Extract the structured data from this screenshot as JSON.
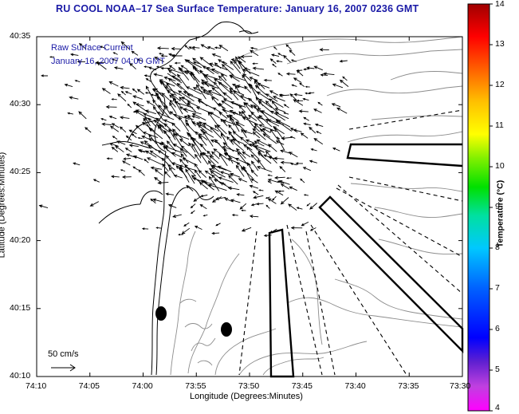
{
  "title": "RU COOL  NOAA–17  Sea Surface Temperature:  January 16, 2007 0236 GMT",
  "legend": {
    "line1": "Raw Surface Current",
    "line2": "January 16, 2007 04:00 GMT"
  },
  "scale": {
    "label": "50 cm/s"
  },
  "axes": {
    "xlabel": "Longitude (Degrees:Minutes)",
    "ylabel": "Latitude (Degrees:Minutes)",
    "xticks": [
      "74:10",
      "74:05",
      "74:00",
      "73:55",
      "73:50",
      "73:45",
      "73:40",
      "73:35",
      "73:30"
    ],
    "yticks": [
      "40:35",
      "40:30",
      "40:25",
      "40:20",
      "40:15",
      "40:10"
    ]
  },
  "colorbar": {
    "label": "Temperature (°C)",
    "ticks": [
      "14",
      "13",
      "12",
      "11",
      "10",
      "9",
      "8",
      "7",
      "6",
      "5",
      "4"
    ],
    "range": [
      4,
      14
    ]
  },
  "colors": {
    "title": "#1a1aa6",
    "frame": "#000000",
    "contour": "#8c8c8c"
  }
}
